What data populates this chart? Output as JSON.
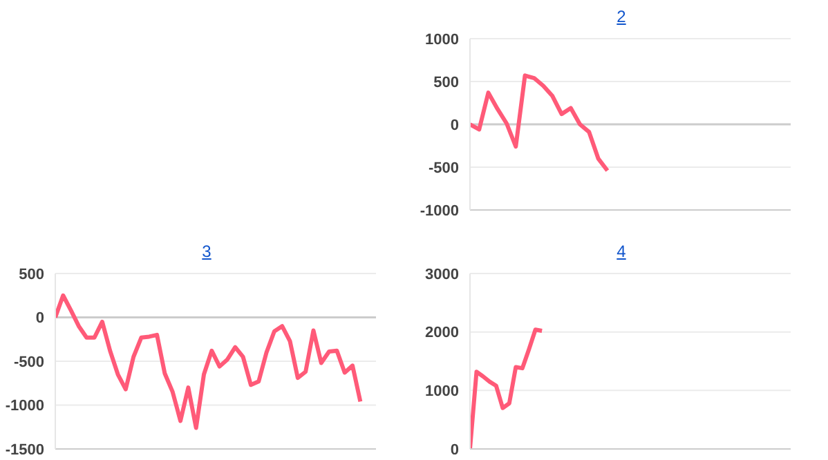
{
  "chart_data": [
    {
      "type": "line",
      "title": "2",
      "categories": [
        null,
        null,
        null,
        null,
        null,
        null,
        null,
        null,
        null,
        null,
        null,
        null,
        null,
        null,
        null,
        null,
        null,
        null,
        null,
        null,
        null,
        null,
        null,
        null,
        null,
        null,
        null,
        null,
        null,
        null,
        null,
        null,
        null,
        null,
        null,
        null
      ],
      "series": [
        {
          "color": "#ff5a78",
          "values": [
            0,
            -60,
            370,
            180,
            10,
            -260,
            570,
            540,
            450,
            330,
            120,
            190,
            0,
            -90,
            -400,
            -540,
            null,
            null,
            null,
            null,
            null,
            null,
            null,
            null,
            null,
            null,
            null,
            null,
            null,
            null,
            null,
            null,
            null,
            null,
            null,
            null
          ]
        }
      ],
      "ylim": [
        -1000,
        1000
      ],
      "yticks": [
        -1000,
        -500,
        0,
        500,
        1000
      ],
      "grid": "y",
      "tick_labels": "y",
      "marker": "none",
      "line_style": "solid",
      "legend": false,
      "ref_lines": [
        {
          "axis": "y",
          "value": 0,
          "color": "#cccccc"
        }
      ]
    },
    {
      "type": "line",
      "title": "3",
      "categories": [
        null,
        null,
        null,
        null,
        null,
        null,
        null,
        null,
        null,
        null,
        null,
        null,
        null,
        null,
        null,
        null,
        null,
        null,
        null,
        null,
        null,
        null,
        null,
        null,
        null,
        null,
        null,
        null,
        null,
        null,
        null,
        null,
        null,
        null,
        null,
        null,
        null,
        null,
        null,
        null,
        null,
        null
      ],
      "series": [
        {
          "color": "#ff5a78",
          "values": [
            0,
            250,
            80,
            -100,
            -230,
            -230,
            -50,
            -380,
            -650,
            -820,
            -450,
            -230,
            -220,
            -200,
            -640,
            -850,
            -1180,
            -800,
            -1260,
            -650,
            -380,
            -560,
            -480,
            -340,
            -450,
            -770,
            -730,
            -400,
            -160,
            -100,
            -270,
            -690,
            -620,
            -150,
            -520,
            -390,
            -380,
            -630,
            -550,
            -960,
            null,
            null
          ]
        }
      ],
      "ylim": [
        -1500,
        500
      ],
      "yticks": [
        -1500,
        -1000,
        -500,
        0,
        500
      ],
      "grid": "y",
      "tick_labels": "y",
      "marker": "none",
      "line_style": "solid",
      "legend": false,
      "ref_lines": [
        {
          "axis": "y",
          "value": 0,
          "color": "#cccccc"
        }
      ]
    },
    {
      "type": "line",
      "title": "4",
      "categories": [
        null,
        null,
        null,
        null,
        null,
        null,
        null,
        null,
        null,
        null,
        null,
        null,
        null,
        null,
        null,
        null,
        null,
        null,
        null,
        null,
        null,
        null,
        null,
        null,
        null,
        null,
        null,
        null,
        null,
        null,
        null,
        null,
        null,
        null,
        null,
        null,
        null,
        null,
        null,
        null,
        null,
        null,
        null,
        null,
        null,
        null,
        null,
        null,
        null,
        null
      ],
      "series": [
        {
          "color": "#ff5a78",
          "values": [
            0,
            1320,
            1240,
            1150,
            1080,
            700,
            780,
            1400,
            1380,
            1700,
            2040,
            2020,
            null,
            null,
            null,
            null,
            null,
            null,
            null,
            null,
            null,
            null,
            null,
            null,
            null,
            null,
            null,
            null,
            null,
            null,
            null,
            null,
            null,
            null,
            null,
            null,
            null,
            null,
            null,
            null,
            null,
            null,
            null,
            null,
            null,
            null,
            null,
            null,
            null,
            null
          ]
        }
      ],
      "ylim": [
        0,
        3000
      ],
      "yticks": [
        0,
        1000,
        2000,
        3000
      ],
      "grid": "y",
      "tick_labels": "y",
      "marker": "none",
      "line_style": "solid",
      "legend": false
    }
  ]
}
